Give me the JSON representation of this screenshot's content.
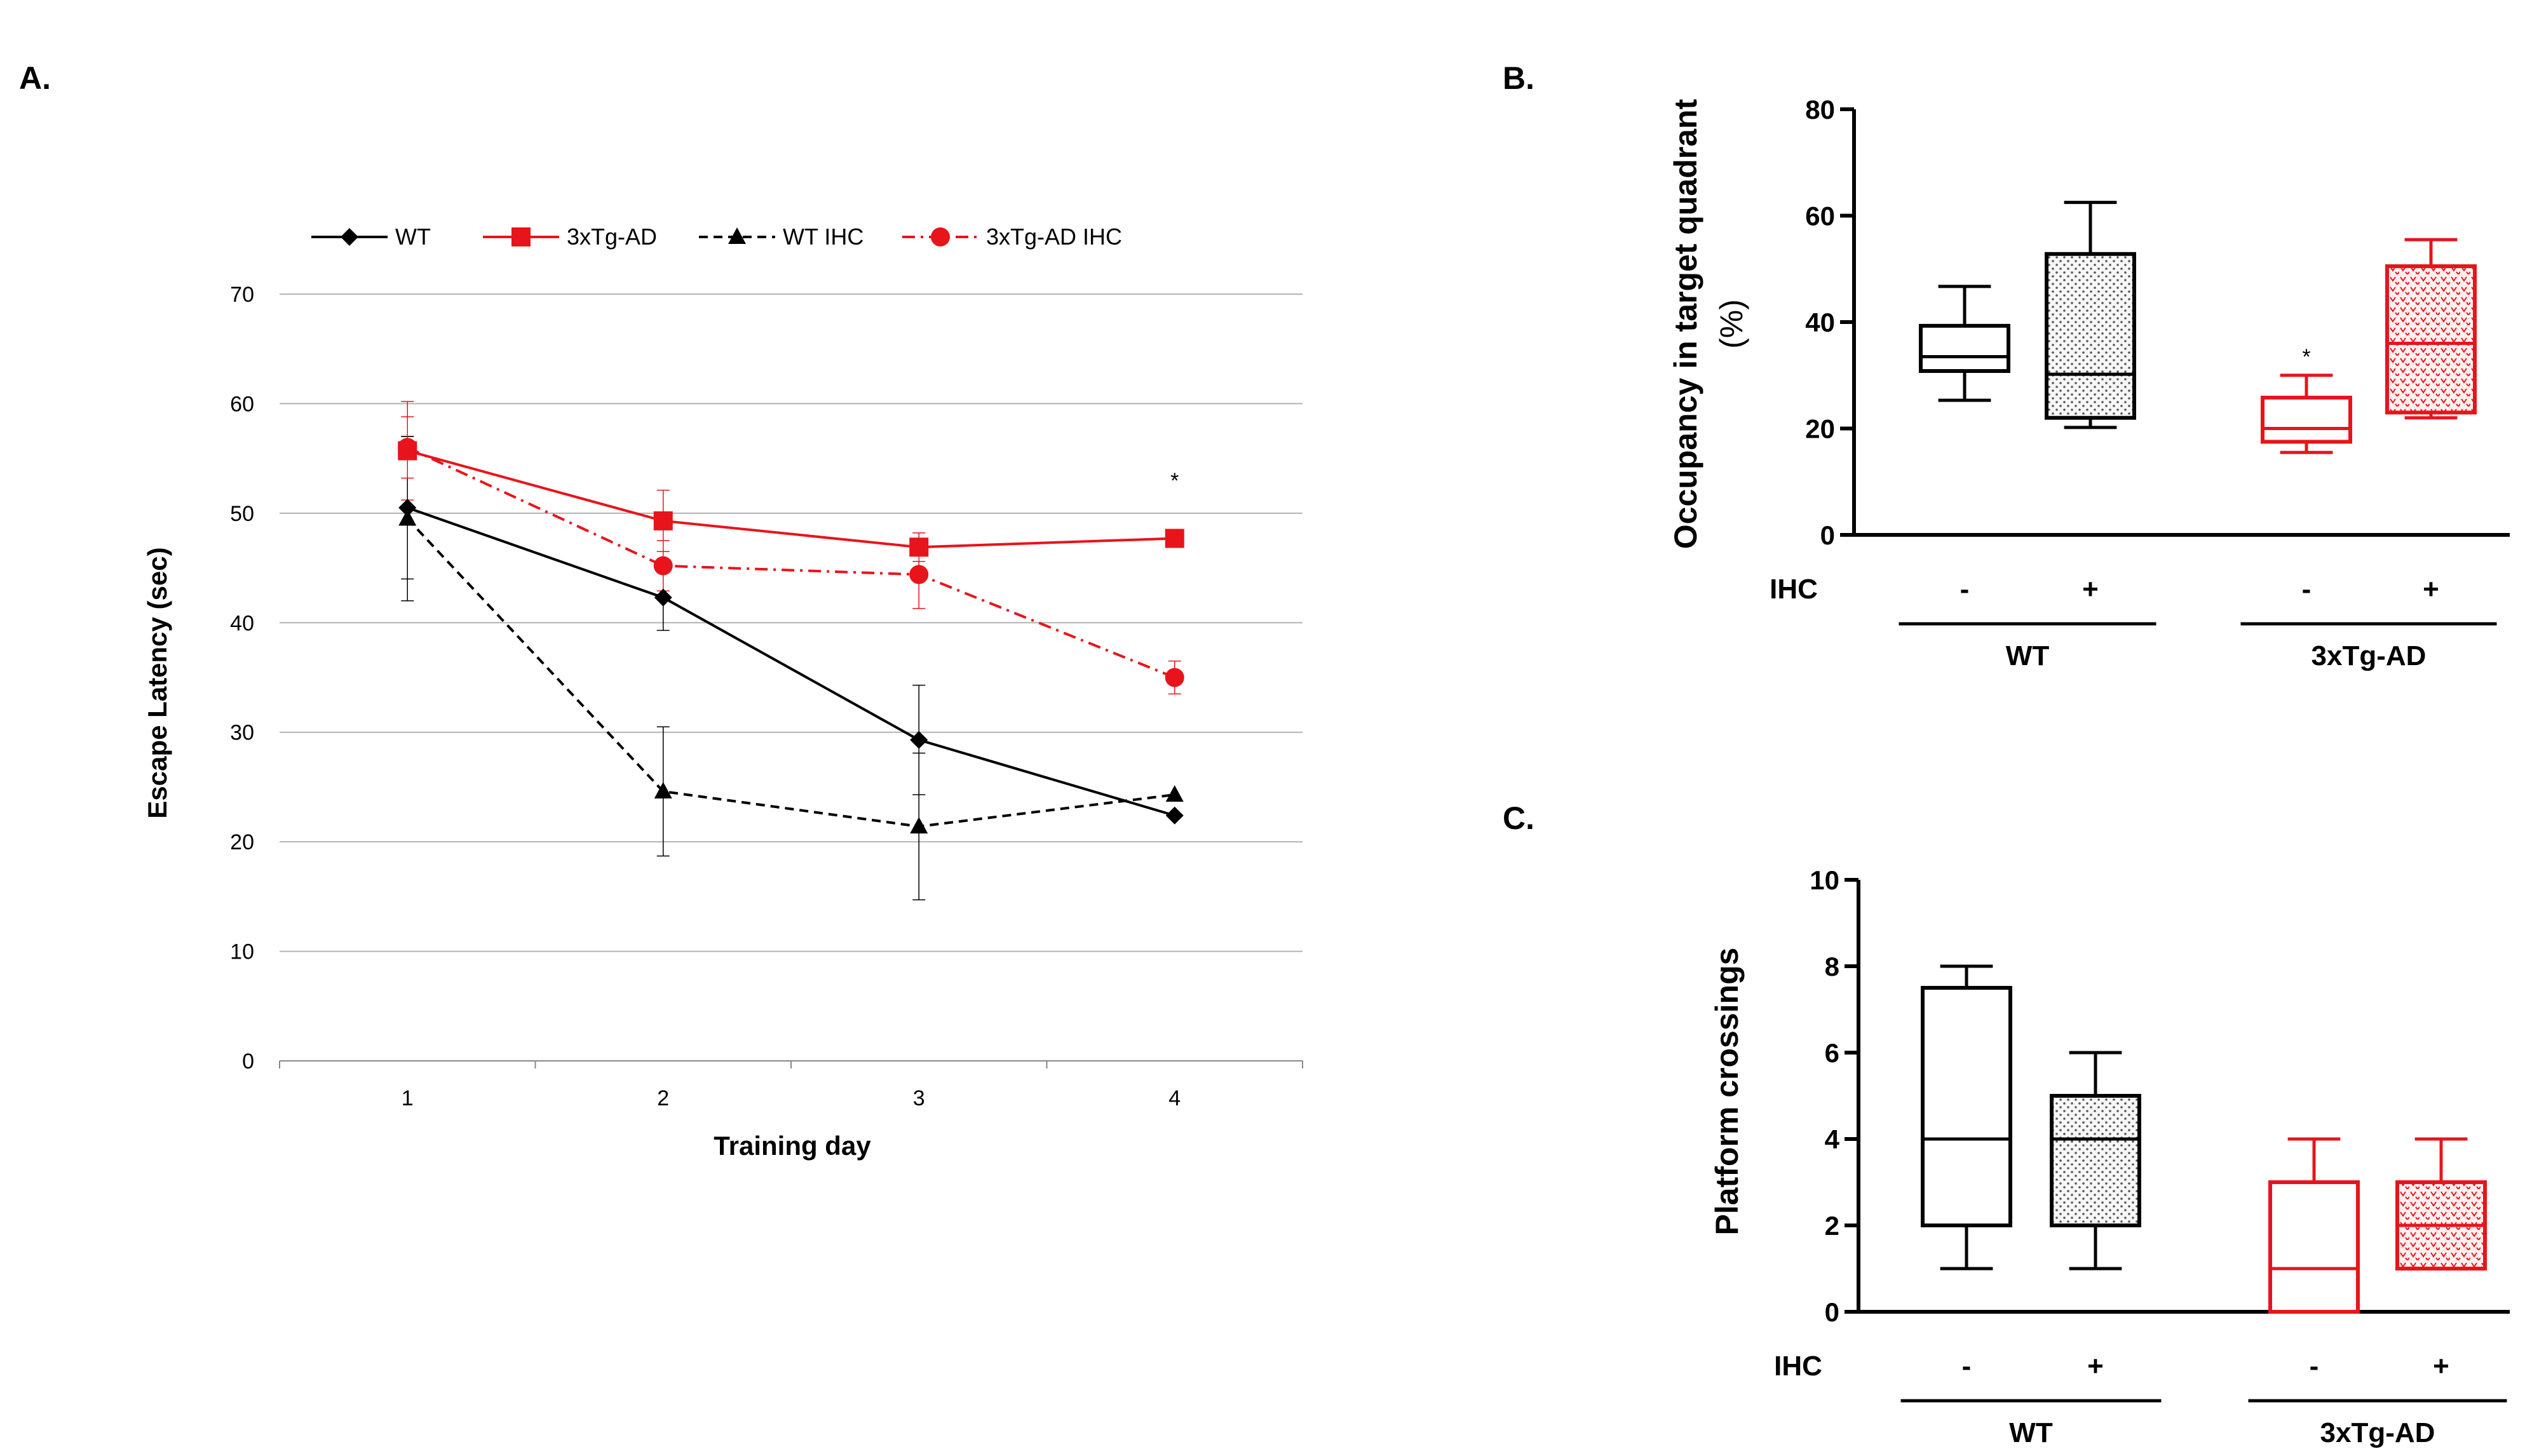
{
  "colors": {
    "wt": "#000000",
    "tg": "#e8141b",
    "grid": "#b3b3b3"
  },
  "chart_data": [
    {
      "panel": "A.",
      "type": "line",
      "xlabel": "Training day",
      "ylabel": "Escape Latency (sec)",
      "categories": [
        "1",
        "2",
        "3",
        "4"
      ],
      "ylim": [
        0,
        70
      ],
      "yticks": [
        0,
        10,
        20,
        30,
        40,
        50,
        60,
        70
      ],
      "grid": true,
      "legend": "top",
      "series": [
        {
          "name": "WT",
          "color": "#000000",
          "dash": "solid",
          "marker": "diamond",
          "values": [
            50.5,
            42.3,
            29.3,
            22.4
          ],
          "err": [
            6.5,
            3.0,
            5.0,
            0
          ]
        },
        {
          "name": "3xTg-AD",
          "color": "#e8141b",
          "dash": "solid",
          "marker": "square",
          "values": [
            55.7,
            49.3,
            46.9,
            47.7
          ],
          "err": [
            4.5,
            2.8,
            1.3,
            0
          ]
        },
        {
          "name": "WT IHC",
          "color": "#000000",
          "dash": "dashed",
          "marker": "triangle",
          "values": [
            49.5,
            24.6,
            21.4,
            24.3
          ],
          "err": [
            7.5,
            5.9,
            6.7,
            0
          ]
        },
        {
          "name": "3xTg-AD IHC",
          "color": "#e8141b",
          "dash": "dashdot",
          "marker": "circle",
          "values": [
            56.0,
            45.2,
            44.4,
            35.0
          ],
          "err": [
            2.8,
            2.3,
            3.1,
            1.5
          ]
        }
      ],
      "annotations": [
        {
          "text": "*",
          "x": "4",
          "y": 53
        }
      ]
    },
    {
      "panel": "B.",
      "type": "box",
      "ylabel_line1": "Occupancy in target quadrant",
      "ylabel_line2": "(%)",
      "ylim": [
        0,
        80
      ],
      "yticks": [
        0,
        20,
        40,
        60,
        80
      ],
      "row_label": "IHC",
      "groups": [
        "WT",
        "3xTg-AD"
      ],
      "boxes": [
        {
          "group": "WT",
          "ihc": "-",
          "color": "#000000",
          "pattern": "none",
          "min": 25.3,
          "q1": 30.8,
          "median": 33.5,
          "q3": 39.3,
          "max": 46.7
        },
        {
          "group": "WT",
          "ihc": "+",
          "color": "#000000",
          "pattern": "dots",
          "min": 20.2,
          "q1": 22.0,
          "median": 30.2,
          "q3": 52.8,
          "max": 62.5
        },
        {
          "group": "3xTg-AD",
          "ihc": "-",
          "color": "#e8141b",
          "pattern": "none",
          "min": 15.5,
          "q1": 17.5,
          "median": 20.0,
          "q3": 25.8,
          "max": 30.0
        },
        {
          "group": "3xTg-AD",
          "ihc": "+",
          "color": "#e8141b",
          "pattern": "hatch",
          "min": 22.0,
          "q1": 23.0,
          "median": 36.0,
          "q3": 50.5,
          "max": 55.5
        }
      ],
      "annotations": [
        {
          "text": "*",
          "box": 2
        }
      ]
    },
    {
      "panel": "C.",
      "type": "box",
      "ylabel": "Platform crossings",
      "ylim": [
        0,
        10
      ],
      "yticks": [
        0,
        2,
        4,
        6,
        8,
        10
      ],
      "row_label": "IHC",
      "groups": [
        "WT",
        "3xTg-AD"
      ],
      "boxes": [
        {
          "group": "WT",
          "ihc": "-",
          "color": "#000000",
          "pattern": "none",
          "min": 1,
          "q1": 2,
          "median": 4,
          "q3": 7.5,
          "max": 8
        },
        {
          "group": "WT",
          "ihc": "+",
          "color": "#000000",
          "pattern": "dots",
          "min": 1,
          "q1": 2,
          "median": 4,
          "q3": 5,
          "max": 6
        },
        {
          "group": "3xTg-AD",
          "ihc": "-",
          "color": "#e8141b",
          "pattern": "none",
          "min": 0,
          "q1": 0,
          "median": 1,
          "q3": 3,
          "max": 4
        },
        {
          "group": "3xTg-AD",
          "ihc": "+",
          "color": "#e8141b",
          "pattern": "hatch",
          "min": 1,
          "q1": 1,
          "median": 2,
          "q3": 3,
          "max": 4
        }
      ]
    }
  ]
}
